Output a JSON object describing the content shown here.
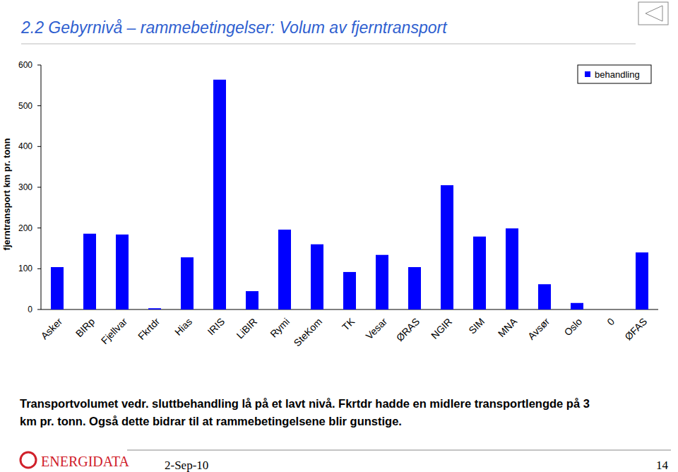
{
  "chart_data": {
    "type": "bar",
    "title": "2.2 Gebyrnivå – rammebetingelser: Volum av fjerntransport",
    "y_label": "fjerntransport km pr. tonn",
    "categories": [
      "Asker",
      "BIRp",
      "Fjellvar",
      "Fkrtdr",
      "Hias",
      "IRIS",
      "LiBIR",
      "Rymi",
      "SteKom",
      "TK",
      "Vesar",
      "ØRAS",
      "NGIR",
      "SIM",
      "MNA",
      "Avsør",
      "Oslo",
      "0",
      "ØFAS"
    ],
    "series": [
      {
        "name": "behandling",
        "color": "#0000ff",
        "values": [
          104,
          186,
          184,
          3,
          128,
          564,
          45,
          196,
          160,
          92,
          134,
          104,
          305,
          179,
          199,
          62,
          16,
          0,
          140
        ]
      }
    ],
    "ylim": [
      0,
      600
    ],
    "yticks": [
      0,
      100,
      200,
      300,
      400,
      500,
      600
    ],
    "grid": false,
    "legend": "top-right"
  },
  "slide": {
    "caption": [
      "Transportvolumet vedr. sluttbehandling lå på et lavt nivå. Fkrtdr hadde en midlere transportlengde på 3",
      "km pr. tonn. Også dette bidrar til at rammebetingelsene blir gunstige."
    ],
    "logo": "ENERGIDATA",
    "date": "2-Sep-10",
    "page": "14"
  }
}
